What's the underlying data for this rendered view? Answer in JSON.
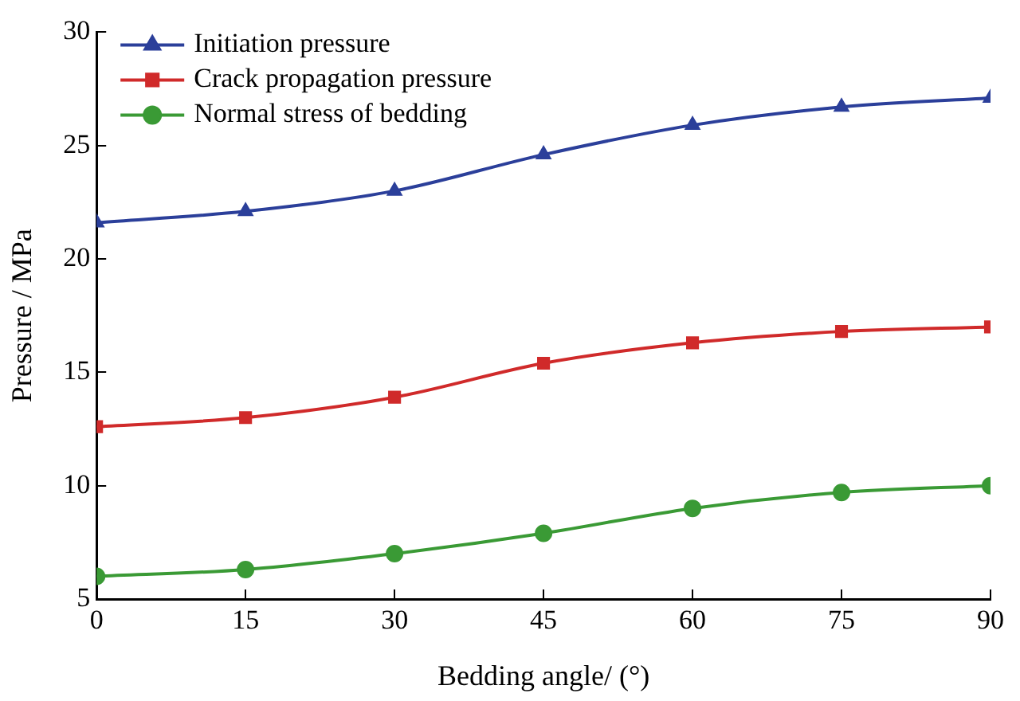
{
  "chart_data": {
    "type": "line",
    "xlabel": "Bedding angle/ (°)",
    "ylabel": "Pressure / MPa",
    "x": [
      0,
      15,
      30,
      45,
      60,
      75,
      90
    ],
    "xlim": [
      0,
      90
    ],
    "xticks": [
      0,
      15,
      30,
      45,
      60,
      75,
      90
    ],
    "ylim": [
      5,
      30
    ],
    "yticks": [
      5,
      10,
      15,
      20,
      25,
      30
    ],
    "grid": false,
    "legend": "top left",
    "series": [
      {
        "name": "Initiation pressure",
        "color": "#2b3f9a",
        "marker": "triangle",
        "values": [
          21.6,
          22.1,
          23.0,
          24.6,
          25.9,
          26.7,
          27.1
        ]
      },
      {
        "name": "Crack propagation pressure",
        "color": "#d02a2a",
        "marker": "square",
        "values": [
          12.6,
          13.0,
          13.9,
          15.4,
          16.3,
          16.8,
          17.0
        ]
      },
      {
        "name": "Normal stress of bedding",
        "color": "#3a9a35",
        "marker": "circle",
        "values": [
          6.0,
          6.3,
          7.0,
          7.9,
          9.0,
          9.7,
          10.0
        ]
      }
    ]
  }
}
